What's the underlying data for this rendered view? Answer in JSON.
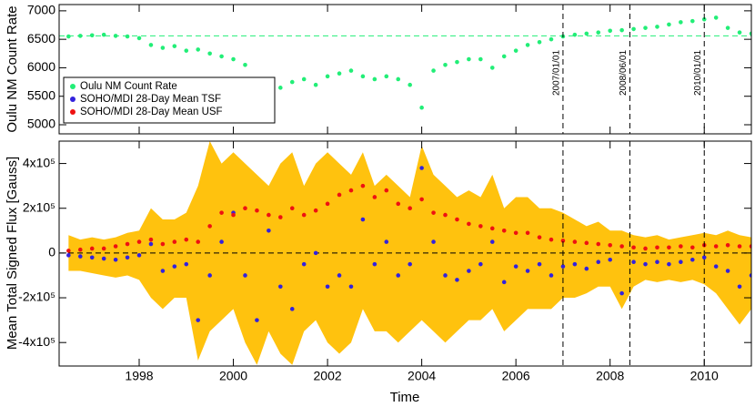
{
  "chart_data": [
    {
      "type": "scatter",
      "ylabel": "Oulu NM Count Rate",
      "xlim": [
        1996.3,
        2011.0
      ],
      "ylim": [
        4840,
        7110
      ],
      "yticks": [
        5000,
        5500,
        6000,
        6500,
        7000
      ],
      "reference_line": 6560,
      "markers": [
        {
          "x": 2007.0,
          "label": "2007/01/01"
        },
        {
          "x": 2008.42,
          "label": "2008/06/01"
        },
        {
          "x": 2010.0,
          "label": "2010/01/01"
        }
      ],
      "x": [
        1996.5,
        1996.75,
        1997.0,
        1997.25,
        1997.5,
        1997.75,
        1998.0,
        1998.25,
        1998.5,
        1998.75,
        1999.0,
        1999.25,
        1999.5,
        1999.75,
        2000.0,
        2000.25,
        2000.5,
        2000.75,
        2001.0,
        2001.25,
        2001.5,
        2001.75,
        2002.0,
        2002.25,
        2002.5,
        2002.75,
        2003.0,
        2003.25,
        2003.5,
        2003.75,
        2004.0,
        2004.25,
        2004.5,
        2004.75,
        2005.0,
        2005.25,
        2005.5,
        2005.75,
        2006.0,
        2006.25,
        2006.5,
        2006.75,
        2007.0,
        2007.25,
        2007.5,
        2007.75,
        2008.0,
        2008.25,
        2008.5,
        2008.75,
        2009.0,
        2009.25,
        2009.5,
        2009.75,
        2010.0,
        2010.25,
        2010.5,
        2010.75,
        2011.0
      ],
      "series": [
        {
          "name": "Oulu NM Count Rate",
          "color": "#22ee77",
          "values": [
            6550,
            6560,
            6570,
            6580,
            6560,
            6550,
            6520,
            6400,
            6350,
            6380,
            6300,
            6320,
            6250,
            6200,
            6150,
            6050,
            5700,
            5600,
            5650,
            5750,
            5800,
            5700,
            5850,
            5900,
            5950,
            5850,
            5800,
            5850,
            5800,
            5700,
            5300,
            5950,
            6050,
            6100,
            6150,
            6150,
            6000,
            6200,
            6300,
            6400,
            6450,
            6500,
            6550,
            6580,
            6600,
            6620,
            6650,
            6660,
            6680,
            6700,
            6720,
            6760,
            6800,
            6820,
            6850,
            6880,
            6700,
            6620,
            6600
          ]
        }
      ],
      "legend": "upper left"
    },
    {
      "type": "scatter",
      "xlabel": "Time",
      "ylabel": "Mean Total Signed Flux [Gauss]",
      "xlim": [
        1996.3,
        2011.0
      ],
      "ylim": [
        -505000,
        500000
      ],
      "xticks": [
        1998,
        2000,
        2002,
        2004,
        2006,
        2008,
        2010
      ],
      "yticks": [
        {
          "value": -400000,
          "label": "-4x10⁵"
        },
        {
          "value": -200000,
          "label": "-2x10⁵"
        },
        0,
        {
          "value": 200000,
          "label": "2x10⁵"
        },
        {
          "value": 400000,
          "label": "4x10⁵"
        }
      ],
      "reference_line": 0,
      "x": [
        1996.5,
        1996.75,
        1997.0,
        1997.25,
        1997.5,
        1997.75,
        1998.0,
        1998.25,
        1998.5,
        1998.75,
        1999.0,
        1999.25,
        1999.5,
        1999.75,
        2000.0,
        2000.25,
        2000.5,
        2000.75,
        2001.0,
        2001.25,
        2001.5,
        2001.75,
        2002.0,
        2002.25,
        2002.5,
        2002.75,
        2003.0,
        2003.25,
        2003.5,
        2003.75,
        2004.0,
        2004.25,
        2004.5,
        2004.75,
        2005.0,
        2005.25,
        2005.5,
        2005.75,
        2006.0,
        2006.25,
        2006.5,
        2006.75,
        2007.0,
        2007.25,
        2007.5,
        2007.75,
        2008.0,
        2008.25,
        2008.5,
        2008.75,
        2009.0,
        2009.25,
        2009.5,
        2009.75,
        2010.0,
        2010.25,
        2010.5,
        2010.75,
        2011.0
      ],
      "band": {
        "color": "#ffc20e",
        "upper": [
          80000,
          60000,
          70000,
          60000,
          70000,
          90000,
          100000,
          200000,
          150000,
          150000,
          180000,
          300000,
          500000,
          400000,
          450000,
          400000,
          350000,
          300000,
          400000,
          450000,
          300000,
          400000,
          450000,
          400000,
          350000,
          450000,
          300000,
          350000,
          300000,
          250000,
          480000,
          350000,
          300000,
          250000,
          280000,
          250000,
          350000,
          200000,
          250000,
          250000,
          200000,
          200000,
          180000,
          150000,
          120000,
          140000,
          100000,
          100000,
          80000,
          70000,
          80000,
          60000,
          70000,
          80000,
          90000,
          80000,
          100000,
          80000,
          70000
        ],
        "lower": [
          -80000,
          -80000,
          -90000,
          -100000,
          -110000,
          -100000,
          -120000,
          -200000,
          -250000,
          -200000,
          -200000,
          -480000,
          -350000,
          -300000,
          -250000,
          -400000,
          -500000,
          -350000,
          -450000,
          -500000,
          -350000,
          -300000,
          -400000,
          -450000,
          -400000,
          -250000,
          -350000,
          -350000,
          -400000,
          -350000,
          -300000,
          -350000,
          -400000,
          -350000,
          -300000,
          -300000,
          -250000,
          -350000,
          -300000,
          -250000,
          -250000,
          -250000,
          -200000,
          -200000,
          -180000,
          -150000,
          -150000,
          -250000,
          -150000,
          -120000,
          -130000,
          -120000,
          -130000,
          -120000,
          -140000,
          -180000,
          -250000,
          -320000,
          -250000
        ]
      },
      "series": [
        {
          "name": "SOHO/MDI 28-Day Mean TSF",
          "color": "#3322dd",
          "values": [
            -10000,
            -15000,
            -20000,
            -25000,
            -30000,
            -20000,
            -10000,
            40000,
            -80000,
            -60000,
            -50000,
            -300000,
            -100000,
            50000,
            180000,
            -100000,
            -300000,
            100000,
            -150000,
            -250000,
            -50000,
            0,
            -150000,
            -100000,
            -150000,
            150000,
            -50000,
            50000,
            -100000,
            -50000,
            380000,
            50000,
            -100000,
            -120000,
            -80000,
            -50000,
            50000,
            -130000,
            -60000,
            -80000,
            -50000,
            -100000,
            -60000,
            -50000,
            -70000,
            -40000,
            -30000,
            -180000,
            -40000,
            -50000,
            -40000,
            -50000,
            -40000,
            -30000,
            -20000,
            -60000,
            -80000,
            -150000,
            -100000
          ]
        },
        {
          "name": "SOHO/MDI 28-Day Mean USF",
          "color": "#ee1111",
          "values": [
            10000,
            15000,
            20000,
            20000,
            30000,
            40000,
            50000,
            60000,
            40000,
            50000,
            60000,
            50000,
            120000,
            180000,
            170000,
            200000,
            190000,
            170000,
            160000,
            200000,
            170000,
            190000,
            220000,
            260000,
            280000,
            300000,
            250000,
            280000,
            220000,
            200000,
            240000,
            180000,
            170000,
            150000,
            130000,
            120000,
            110000,
            100000,
            90000,
            90000,
            70000,
            60000,
            55000,
            50000,
            45000,
            40000,
            35000,
            30000,
            25000,
            20000,
            25000,
            25000,
            30000,
            25000,
            35000,
            30000,
            35000,
            30000,
            30000
          ]
        }
      ]
    }
  ]
}
